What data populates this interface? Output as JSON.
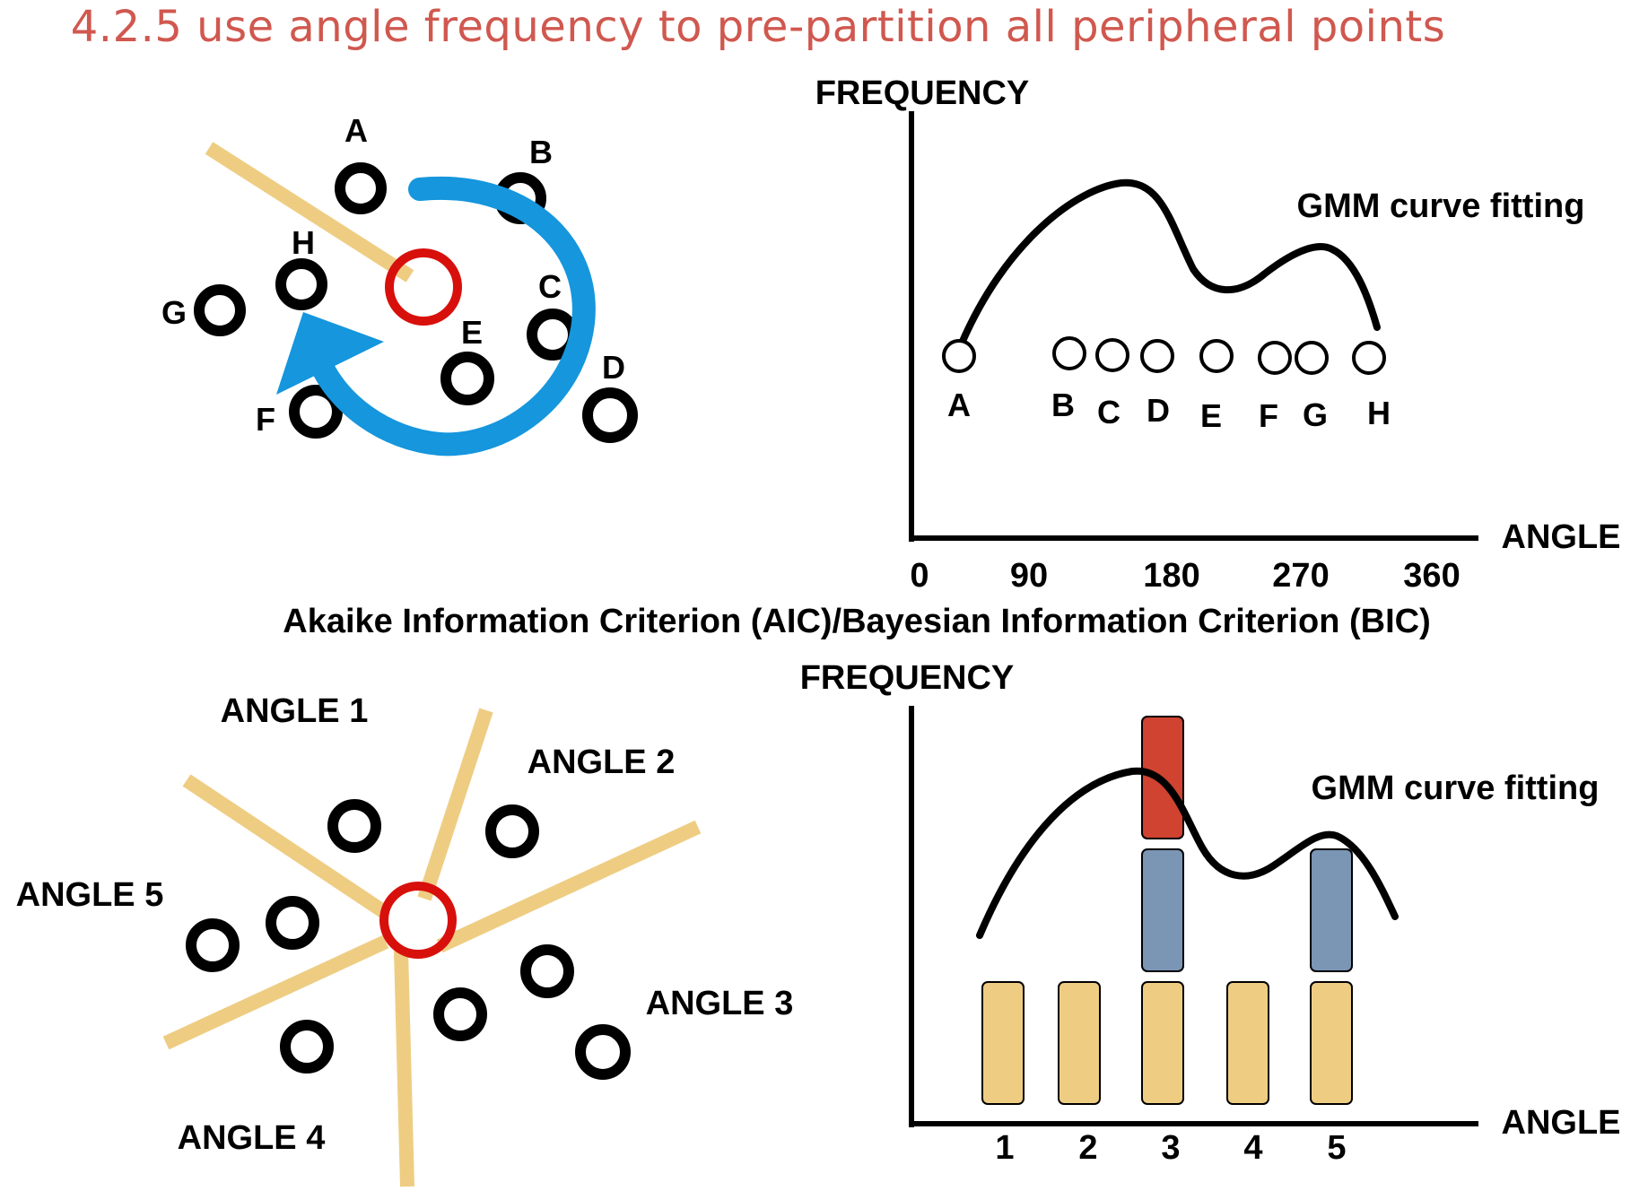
{
  "title": "4.2.5 use angle frequency to pre-partition all peripheral points",
  "colors": {
    "title": "#d0584f",
    "center_ring": "#d8100c",
    "arrow": "#1596dd",
    "divider_line": "#eecd83",
    "bar_base": "#eecd83",
    "bar_mid": "#7b95b5",
    "bar_top": "#cf4330",
    "point_ring": "#000000"
  },
  "top_scatter": {
    "point_labels": [
      "A",
      "B",
      "C",
      "D",
      "E",
      "F",
      "G",
      "H"
    ]
  },
  "top_chart": {
    "y_label": "FREQUENCY",
    "x_label": "ANGLE",
    "x_ticks": [
      "0",
      "90",
      "180",
      "270",
      "360"
    ],
    "curve_label": "GMM curve fitting",
    "point_labels": [
      "A",
      "B",
      "C",
      "D",
      "E",
      "F",
      "G",
      "H"
    ]
  },
  "criterion_text": "Akaike Information Criterion (AIC)/Bayesian Information Criterion (BIC)",
  "bottom_scatter": {
    "angle_labels": [
      "ANGLE 1",
      "ANGLE 2",
      "ANGLE 3",
      "ANGLE 4",
      "ANGLE 5"
    ]
  },
  "bottom_chart": {
    "y_label": "FREQUENCY",
    "x_label": "ANGLE",
    "x_ticks": [
      "1",
      "2",
      "3",
      "4",
      "5"
    ],
    "curve_label": "GMM curve fitting",
    "stacked_counts": [
      1,
      1,
      3,
      1,
      2
    ]
  }
}
